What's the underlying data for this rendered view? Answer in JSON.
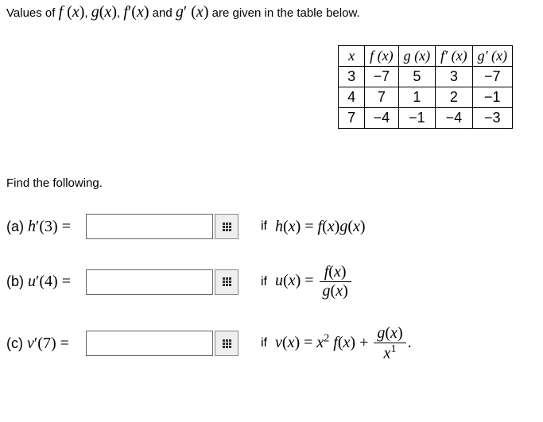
{
  "intro_text": "Values of f (x), g(x), f′(x) and g′ (x) are given in the table below.",
  "table": {
    "headers": [
      "x",
      "f (x)",
      "g (x)",
      "f′ (x)",
      "g′ (x)"
    ],
    "rows": [
      [
        "3",
        "−7",
        "5",
        "3",
        "−7"
      ],
      [
        "4",
        "7",
        "1",
        "2",
        "−1"
      ],
      [
        "7",
        "−4",
        "−1",
        "−4",
        "−3"
      ]
    ],
    "border_color": "#000000"
  },
  "find_text": "Find the following.",
  "parts": {
    "a": {
      "label": "(a)",
      "lhs": "h′(3) =",
      "if": "if",
      "rhs": "h(x) = f(x)g(x)"
    },
    "b": {
      "label": "(b)",
      "lhs": "u′(4) =",
      "if": "if",
      "rhs_plain": "u(x) =",
      "frac_num": "f(x)",
      "frac_den": "g(x)"
    },
    "c": {
      "label": "(c)",
      "lhs": "v′(7) =",
      "if": "if",
      "rhs_pre": "v(x) = x",
      "rhs_exp": "2",
      "rhs_mid": " f(x) + ",
      "frac_num": "g(x)",
      "frac_den": "x",
      "den_exp": "1",
      "tail": "."
    }
  },
  "colors": {
    "text": "#000000",
    "background": "#ffffff",
    "input_border": "#666666",
    "button_bg": "#eeeeee"
  }
}
